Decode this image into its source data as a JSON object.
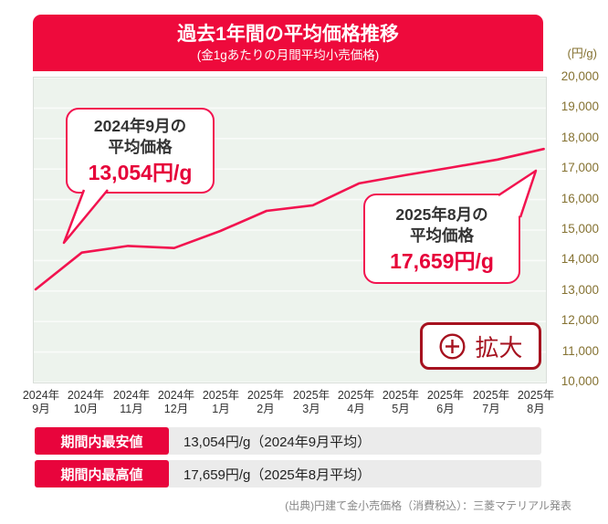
{
  "header": {
    "title": "過去1年間の平均価格推移",
    "subtitle": "(金1gあたりの月間平均小売価格)"
  },
  "chart_data": {
    "type": "line",
    "title": "過去1年間の平均価格推移",
    "subtitle": "(金1gあたりの月間平均小売価格)",
    "unit_label": "(円/g)",
    "categories": [
      "2024年9月",
      "2024年10月",
      "2024年11月",
      "2024年12月",
      "2025年1月",
      "2025年2月",
      "2025年3月",
      "2025年4月",
      "2025年5月",
      "2025年6月",
      "2025年7月",
      "2025年8月"
    ],
    "x_tick_labels": [
      {
        "year": "2024年",
        "month": "9月"
      },
      {
        "year": "2024年",
        "month": "10月"
      },
      {
        "year": "2024年",
        "month": "11月"
      },
      {
        "year": "2024年",
        "month": "12月"
      },
      {
        "year": "2025年",
        "month": "1月"
      },
      {
        "year": "2025年",
        "month": "2月"
      },
      {
        "year": "2025年",
        "month": "3月"
      },
      {
        "year": "2025年",
        "month": "4月"
      },
      {
        "year": "2025年",
        "month": "5月"
      },
      {
        "year": "2025年",
        "month": "6月"
      },
      {
        "year": "2025年",
        "month": "7月"
      },
      {
        "year": "2025年",
        "month": "8月"
      }
    ],
    "values": [
      13054,
      14260,
      14480,
      14410,
      14970,
      15630,
      15810,
      16530,
      16800,
      17050,
      17310,
      17659
    ],
    "labeled_points": [
      {
        "category": "2024年9月",
        "value": 13054
      },
      {
        "category": "2025年8月",
        "value": 17659
      }
    ],
    "ylim": [
      10000,
      20000
    ],
    "yticks": [
      {
        "value": 20000,
        "label": "20,000"
      },
      {
        "value": 19000,
        "label": "19,000"
      },
      {
        "value": 18000,
        "label": "18,000"
      },
      {
        "value": 17000,
        "label": "17,000"
      },
      {
        "value": 16000,
        "label": "16,000"
      },
      {
        "value": 15000,
        "label": "15,000"
      },
      {
        "value": 14000,
        "label": "14,000"
      },
      {
        "value": 13000,
        "label": "13,000"
      },
      {
        "value": 12000,
        "label": "12,000"
      },
      {
        "value": 11000,
        "label": "11,000"
      },
      {
        "value": 10000,
        "label": "10,000"
      }
    ],
    "grid": true,
    "legend": false,
    "line_color": "#f2134f",
    "plot_bg": "#edf3ed"
  },
  "callouts": [
    {
      "line1": "2024年9月の",
      "line2": "平均価格",
      "value": "13,054円/g"
    },
    {
      "line1": "2025年8月の",
      "line2": "平均価格",
      "value": "17,659円/g"
    }
  ],
  "zoom_button": {
    "label": "拡大",
    "icon": "plus-circle-icon"
  },
  "summary_rows": [
    {
      "badge": "期間内最安値",
      "value": "13,054円/g（2024年9月平均）"
    },
    {
      "badge": "期間内最高値",
      "value": "17,659円/g（2025年8月平均）"
    }
  ],
  "source": "(出典)円建て金小売価格（消費税込）：三菱マテリアル発表",
  "colors": {
    "header_red": "#ee0a3c",
    "accent_red": "#f2134f",
    "value_red": "#e60039",
    "button_red": "#a6121f",
    "ylabel_gold": "#857232",
    "row_gray": "#ebebeb",
    "badge_red": "#e8043c"
  }
}
